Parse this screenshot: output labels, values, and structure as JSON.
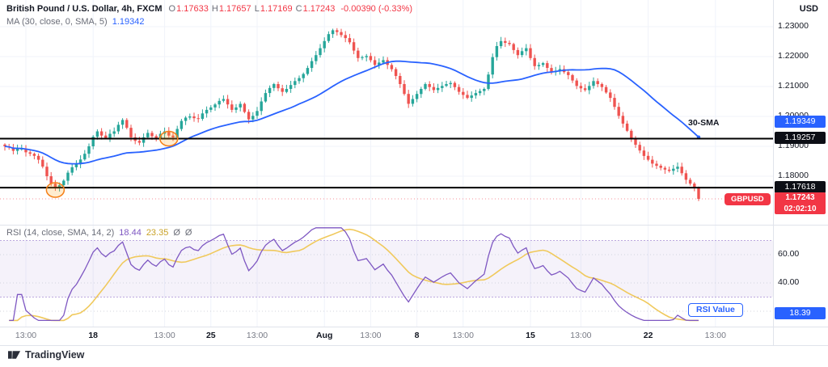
{
  "header": {
    "symbol_title": "British Pound / U.S. Dollar, 4h, FXCM",
    "currency_label": "USD",
    "ohlc": {
      "o_label": "O",
      "o": "1.17633",
      "h_label": "H",
      "h": "1.17657",
      "l_label": "L",
      "l": "1.17169",
      "c_label": "C",
      "c": "1.17243",
      "change": "-0.00390 (-0.33%)"
    },
    "ma_legend": {
      "label": "MA (30, close, 0, SMA, 5)",
      "value": "1.19342"
    }
  },
  "rsi_legend": {
    "label": "RSI (14, close, SMA, 14, 2)",
    "value": "18.44",
    "ma_value": "23.35",
    "band1": "Ø",
    "band2": "Ø"
  },
  "price_scale": {
    "labels": [
      "1.23000",
      "1.22000",
      "1.21000",
      "1.20000",
      "1.19000",
      "1.18000"
    ],
    "values": [
      1.23,
      1.22,
      1.21,
      1.2,
      1.19,
      1.18
    ]
  },
  "rsi_scale": {
    "labels": [
      "60.00",
      "40.00",
      "20.00"
    ],
    "values": [
      60,
      40,
      20
    ]
  },
  "time_axis": {
    "labels": [
      {
        "text": "13:00",
        "i": 5,
        "bold": false
      },
      {
        "text": "18",
        "i": 21,
        "bold": true
      },
      {
        "text": "13:00",
        "i": 38,
        "bold": false
      },
      {
        "text": "25",
        "i": 49,
        "bold": true
      },
      {
        "text": "13:00",
        "i": 60,
        "bold": false
      },
      {
        "text": "Aug",
        "i": 76,
        "bold": true
      },
      {
        "text": "13:00",
        "i": 87,
        "bold": false
      },
      {
        "text": "8",
        "i": 98,
        "bold": true
      },
      {
        "text": "13:00",
        "i": 109,
        "bold": false
      },
      {
        "text": "15",
        "i": 125,
        "bold": true
      },
      {
        "text": "13:00",
        "i": 137,
        "bold": false
      },
      {
        "text": "22",
        "i": 153,
        "bold": true
      },
      {
        "text": "13:00",
        "i": 169,
        "bold": false
      }
    ]
  },
  "badges": {
    "resistance": {
      "text": "1.19257",
      "value": 1.19257
    },
    "support": {
      "text": "1.17618",
      "value": 1.17618
    },
    "sma": {
      "text": "1.19349"
    },
    "symbol": {
      "text": "GBPUSD"
    },
    "last_price": {
      "text": "1.17243",
      "value": 1.17243
    },
    "countdown": {
      "text": "02:02:10"
    },
    "rsi": {
      "text": "18.39",
      "value": 18.39
    }
  },
  "annotations": {
    "sma_label": "30-SMA",
    "rsi_callout": "RSI Value",
    "circles": [
      {
        "i": 12,
        "price": 1.1754
      },
      {
        "i": 39,
        "price": 1.19257
      }
    ]
  },
  "footer": {
    "brand": "TradingView"
  },
  "colors": {
    "up": "#26a69a",
    "down": "#ef5350",
    "sma": "#2962ff",
    "rsi": "#7e57c2",
    "rsi_ma": "#f0c95c",
    "level": "#000000",
    "grid": "#f0f3fa",
    "accent_red": "#f23645",
    "accent_blue": "#2962ff"
  },
  "chart_data": {
    "type": "candlestick",
    "title": "British Pound / U.S. Dollar, 4h, FXCM",
    "timeframe": "4h",
    "exchange": "FXCM",
    "ylabel": "USD",
    "price_axis_range": [
      1.168,
      1.238
    ],
    "x_axis_labels": [
      "13:00",
      "18",
      "13:00",
      "25",
      "13:00",
      "Aug",
      "13:00",
      "8",
      "13:00",
      "15",
      "13:00",
      "22",
      "13:00"
    ],
    "indicators": {
      "sma_period": 30,
      "rsi_period": 14,
      "rsi_ma_period": 14,
      "rsi_upper_band": 70,
      "rsi_lower_band": 30
    },
    "levels": [
      1.19257,
      1.17618
    ],
    "last_close": 1.17243,
    "last_candle": [
      1.17633,
      1.17657,
      1.17169,
      1.17243
    ],
    "closes": [
      1.19,
      1.1896,
      1.1885,
      1.1892,
      1.1892,
      1.188,
      1.1875,
      1.1868,
      1.1855,
      1.1832,
      1.18,
      1.1775,
      1.1762,
      1.177,
      1.1785,
      1.1812,
      1.183,
      1.184,
      1.1856,
      1.1875,
      1.19,
      1.1932,
      1.195,
      1.1936,
      1.1928,
      1.1942,
      1.195,
      1.1972,
      1.1988,
      1.1962,
      1.193,
      1.1918,
      1.1912,
      1.193,
      1.1945,
      1.1934,
      1.1928,
      1.1942,
      1.195,
      1.1936,
      1.193,
      1.1958,
      1.1985,
      1.1996,
      1.2,
      1.1994,
      1.1992,
      1.201,
      1.2022,
      1.203,
      1.204,
      1.2052,
      1.2058,
      1.204,
      1.2022,
      1.203,
      1.2042,
      1.2015,
      1.199,
      1.2002,
      1.2018,
      1.205,
      1.2078,
      1.2095,
      1.2108,
      1.2094,
      1.2082,
      1.2092,
      1.2105,
      1.2118,
      1.2128,
      1.2142,
      1.2162,
      1.2185,
      1.2205,
      1.2228,
      1.2252,
      1.2275,
      1.2288,
      1.2282,
      1.2272,
      1.2262,
      1.2248,
      1.222,
      1.2195,
      1.2198,
      1.2202,
      1.2188,
      1.2172,
      1.218,
      1.2188,
      1.2172,
      1.2158,
      1.2135,
      1.2108,
      1.2075,
      1.2042,
      1.2058,
      1.2075,
      1.2092,
      1.2108,
      1.2098,
      1.2088,
      1.2095,
      1.2102,
      1.2108,
      1.2112,
      1.2098,
      1.2082,
      1.2072,
      1.2062,
      1.207,
      1.2078,
      1.2085,
      1.2092,
      1.214,
      1.2198,
      1.2235,
      1.2252,
      1.2246,
      1.2242,
      1.2222,
      1.2205,
      1.2218,
      1.2228,
      1.2195,
      1.2168,
      1.2172,
      1.2178,
      1.2162,
      1.2148,
      1.2152,
      1.2158,
      1.2148,
      1.2138,
      1.212,
      1.2102,
      1.2094,
      1.2088,
      1.2102,
      1.2118,
      1.2108,
      1.2098,
      1.208,
      1.2062,
      1.2032,
      1.2002,
      1.1976,
      1.1952,
      1.1928,
      1.1905,
      1.1886,
      1.1868,
      1.1855,
      1.1842,
      1.1835,
      1.1828,
      1.1822,
      1.1818,
      1.1825,
      1.1832,
      1.181,
      1.1788,
      1.1775,
      1.1762,
      1.17243
    ]
  }
}
